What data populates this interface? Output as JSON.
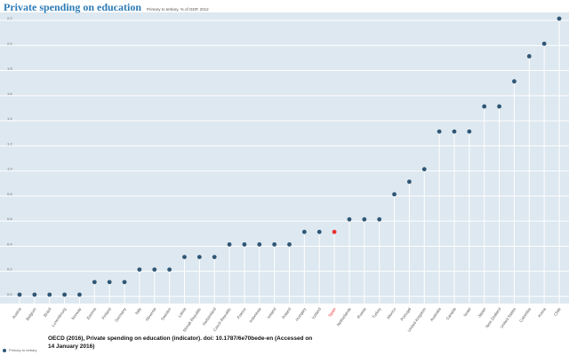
{
  "header": {
    "title": "Private spending on education",
    "subtitle": "Primary to tertiary, % of GDP, 2012"
  },
  "source": "OECD (2016), Private spending on education (indicator). doi: 10.1787/6e70bede-en (Accessed on 14 January 2016)",
  "chart_data": {
    "type": "scatter",
    "title": "Private spending on education",
    "subtitle": "Primary to tertiary, % of GDP, 2012",
    "categories": [
      "Austria",
      "Belgium",
      "Brazil",
      "Luxembourg",
      "Norway",
      "Estonia",
      "Finland",
      "Germany",
      "Italy",
      "Slovenia",
      "Sweden",
      "Latvia",
      "Slovak Republic",
      "Switzerland",
      "Czech Republic",
      "France",
      "Indonesia",
      "Ireland",
      "Poland",
      "Hungary",
      "Iceland",
      "Spain",
      "Netherlands",
      "Russia",
      "Turkey",
      "Mexico",
      "Portugal",
      "United Kingdom",
      "Australia",
      "Canada",
      "Israel",
      "Japan",
      "New Zealand",
      "United States",
      "Colombia",
      "Korea",
      "Chile"
    ],
    "series": [
      {
        "name": "Primary to tertiary",
        "values": [
          0,
          0,
          0,
          0,
          0,
          0.1,
          0.1,
          0.1,
          0.2,
          0.2,
          0.2,
          0.3,
          0.3,
          0.3,
          0.4,
          0.4,
          0.4,
          0.4,
          0.4,
          0.5,
          0.5,
          0.5,
          0.6,
          0.6,
          0.6,
          0.8,
          0.9,
          1.0,
          1.3,
          1.3,
          1.3,
          1.5,
          1.5,
          1.7,
          1.9,
          2.0,
          2.2
        ]
      }
    ],
    "highlight": "Spain",
    "yticks": [
      "0.0",
      "0.2",
      "0.4",
      "0.6",
      "0.8",
      "1.0",
      "1.2",
      "1.4",
      "1.6",
      "1.8",
      "2.0",
      "2.2"
    ],
    "ylim": [
      0,
      2.2
    ],
    "grid": true,
    "legend": "bottom-left",
    "colors": {
      "point": "#2f5675",
      "highlight": "#e8312f",
      "background": "#dde8f0",
      "grid": "#ffffff"
    }
  }
}
